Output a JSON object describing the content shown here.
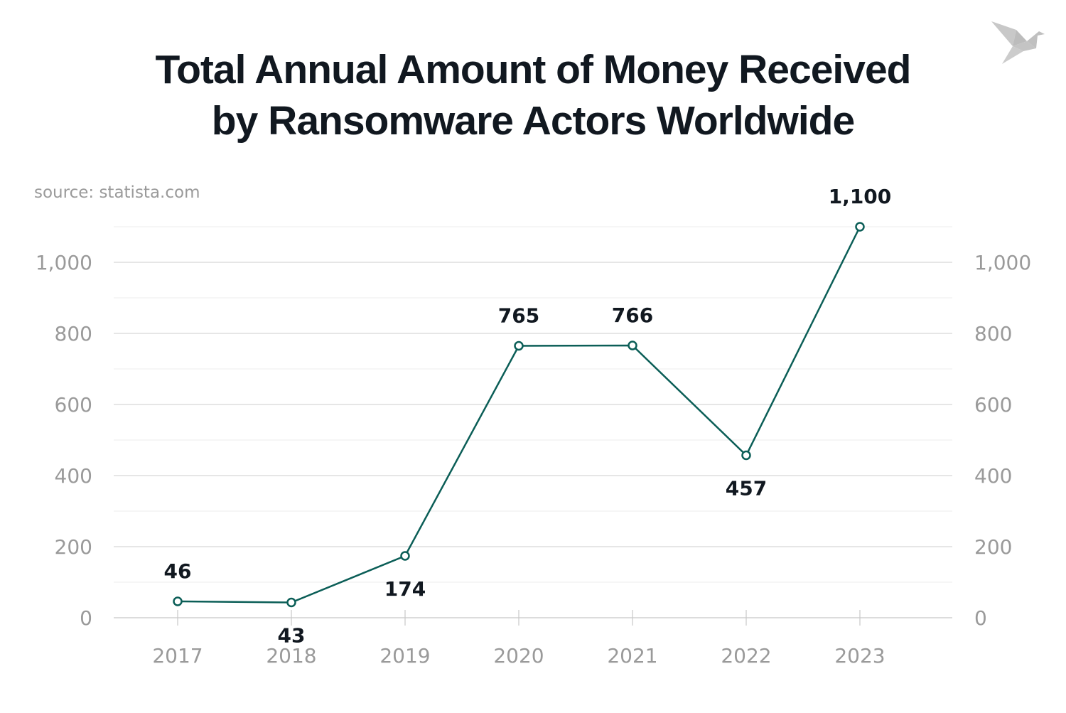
{
  "chart_data": {
    "type": "line",
    "title": "Total Annual Amount of Money Received by Ransomware Actors Worldwide",
    "title_lines": [
      "Total Annual Amount of Money Received",
      "by Ransomware Actors Worldwide"
    ],
    "source": "source: statista.com",
    "categories": [
      "2017",
      "2018",
      "2019",
      "2020",
      "2021",
      "2022",
      "2023"
    ],
    "values": [
      46,
      43,
      174,
      765,
      766,
      457,
      1100
    ],
    "data_labels": [
      "46",
      "43",
      "174",
      "765",
      "766",
      "457",
      "1,100"
    ],
    "xlabel": "",
    "ylabel": "",
    "ylim": [
      0,
      1100
    ],
    "yticks": [
      0,
      200,
      400,
      600,
      800,
      1000
    ],
    "ytick_labels": [
      "0",
      "200",
      "400",
      "600",
      "800",
      "1,000"
    ],
    "grid": true,
    "dual_y_axis_labels": true,
    "colors": {
      "line": "#0b5e57",
      "grid": "#d6d6d6",
      "tick_text": "#9a9a9a",
      "label_text": "#111820"
    }
  },
  "logo": {
    "icon": "origami-bird-icon",
    "color": "#c8c8c8"
  }
}
